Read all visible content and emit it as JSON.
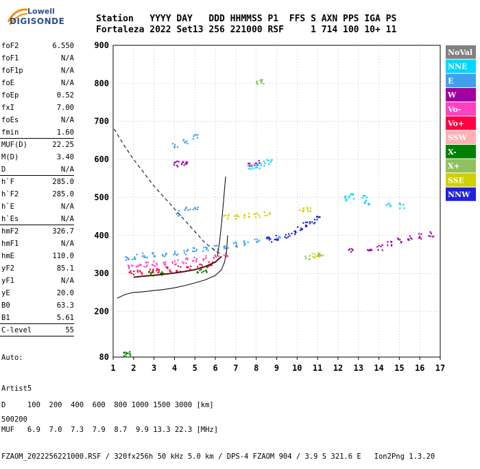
{
  "logo": {
    "line1": "Lowell",
    "line2": "DIGISONDE"
  },
  "header": {
    "row1": "Station   YYYY DAY   DDD HHMMSS P1  FFS S AXN PPS IGA PS",
    "row2": "Fortaleza 2022 Set13 256 221000 RSF     1 714 100 10+ 11"
  },
  "params": [
    {
      "name": "foF2",
      "value": "6.550"
    },
    {
      "name": "foF1",
      "value": "N/A"
    },
    {
      "name": "foF1p",
      "value": "N/A"
    },
    {
      "name": "foE",
      "value": "N/A"
    },
    {
      "name": "foEp",
      "value": "0.52"
    },
    {
      "name": "fxI",
      "value": "7.00"
    },
    {
      "name": "foEs",
      "value": "N/A"
    },
    {
      "name": "fmin",
      "value": "1.60"
    },
    {
      "name": "MUF(D)",
      "value": "22.25"
    },
    {
      "name": "M(D)",
      "value": "3.40"
    },
    {
      "name": "D",
      "value": "N/A"
    },
    {
      "name": "h`F",
      "value": "285.0"
    },
    {
      "name": "h`F2",
      "value": "285.0"
    },
    {
      "name": "h`E",
      "value": "N/A"
    },
    {
      "name": "h`Es",
      "value": "N/A"
    },
    {
      "name": "hmF2",
      "value": "326.7"
    },
    {
      "name": "hmF1",
      "value": "N/A"
    },
    {
      "name": "hmE",
      "value": "110.0"
    },
    {
      "name": "yF2",
      "value": "85.1"
    },
    {
      "name": "yF1",
      "value": "N/A"
    },
    {
      "name": "yE",
      "value": "20.0"
    },
    {
      "name": "B0",
      "value": "63.3"
    },
    {
      "name": "B1",
      "value": "5.61"
    },
    {
      "name": "C-level",
      "value": "55"
    }
  ],
  "auto": {
    "line1": "Auto:",
    "line2": "Artist5",
    "line3": "500200"
  },
  "footer": {
    "line1": "D     100  200  400  600  800 1000 1500 3000 [km]",
    "line2": "MUF   6.9  7.0  7.3  7.9  8.7  9.9 13.3 22.3 [MHz]",
    "line3": "FZAOM_2022256221000.RSF / 320fx256h 50 kHz 5.0 km / DPS-4 FZAOM 904 / 3.9 S 321.6 E   Ion2Png 1.3.20"
  },
  "legend": [
    {
      "label": "NoVal",
      "color": "#808080"
    },
    {
      "label": "NNE",
      "color": "#00d8ff"
    },
    {
      "label": "E",
      "color": "#3fa0f0"
    },
    {
      "label": "W",
      "color": "#a000a0"
    },
    {
      "label": "Vo-",
      "color": "#ff40c0"
    },
    {
      "label": "Vo+",
      "color": "#ff0040"
    },
    {
      "label": "SSW",
      "color": "#ffb0b0"
    },
    {
      "label": "X-",
      "color": "#008000"
    },
    {
      "label": "X+",
      "color": "#90c060"
    },
    {
      "label": "SSE",
      "color": "#d0d000"
    },
    {
      "label": "NNW",
      "color": "#2020e0"
    }
  ],
  "chart_data": {
    "type": "scatter",
    "xlim": [
      1,
      17
    ],
    "ylim": [
      80,
      900
    ],
    "x_ticks": [
      "1",
      "2",
      "3",
      "4",
      "5",
      "6",
      "7",
      "8",
      "9",
      "10",
      "11",
      "12",
      "13",
      "14",
      "15",
      "16",
      "17"
    ],
    "y_ticks": [
      "900",
      "800",
      "700",
      "600",
      "500",
      "400",
      "300",
      "200",
      "80"
    ],
    "y_tick_values": [
      900,
      800,
      700,
      600,
      500,
      400,
      300,
      200,
      80
    ],
    "grid": "dotted",
    "legend_placement": "right",
    "series": [
      {
        "color": "#3fa0f0",
        "points": [
          [
            1.7,
            340
          ],
          [
            2.0,
            345
          ],
          [
            2.5,
            348
          ],
          [
            3.0,
            350
          ],
          [
            3.5,
            352
          ],
          [
            4.0,
            355
          ],
          [
            4.5,
            358
          ],
          [
            5.0,
            362
          ],
          [
            5.5,
            366
          ],
          [
            6.0,
            370
          ],
          [
            6.5,
            374
          ],
          [
            7.0,
            378
          ],
          [
            7.5,
            382
          ],
          [
            8.0,
            386
          ],
          [
            8.5,
            390
          ],
          [
            9.0,
            395
          ],
          [
            4.2,
            460
          ],
          [
            4.6,
            470
          ],
          [
            5.0,
            475
          ],
          [
            4.0,
            640
          ],
          [
            4.5,
            650
          ],
          [
            5.0,
            660
          ]
        ]
      },
      {
        "color": "#ff40c0",
        "points": [
          [
            1.8,
            320
          ],
          [
            2.2,
            322
          ],
          [
            2.6,
            325
          ],
          [
            3.0,
            327
          ],
          [
            3.5,
            330
          ],
          [
            4.0,
            332
          ],
          [
            4.5,
            335
          ],
          [
            5.0,
            338
          ],
          [
            5.5,
            342
          ],
          [
            6.0,
            345
          ],
          [
            6.5,
            350
          ]
        ]
      },
      {
        "color": "#ff0040",
        "points": [
          [
            1.9,
            305
          ],
          [
            2.3,
            306
          ],
          [
            2.8,
            308
          ],
          [
            3.2,
            310
          ],
          [
            3.7,
            312
          ],
          [
            4.2,
            314
          ],
          [
            4.7,
            318
          ],
          [
            5.2,
            322
          ],
          [
            5.7,
            326
          ]
        ]
      },
      {
        "color": "#a000a0",
        "points": [
          [
            4.0,
            590
          ],
          [
            4.3,
            592
          ],
          [
            4.6,
            595
          ],
          [
            7.7,
            590
          ],
          [
            8.0,
            592
          ],
          [
            13.5,
            360
          ],
          [
            14.0,
            370
          ],
          [
            14.5,
            380
          ],
          [
            15.0,
            390
          ],
          [
            15.5,
            395
          ],
          [
            16.0,
            400
          ],
          [
            16.5,
            405
          ],
          [
            12.6,
            360
          ]
        ]
      },
      {
        "color": "#2020e0",
        "points": [
          [
            9.5,
            400
          ],
          [
            9.8,
            410
          ],
          [
            10.1,
            420
          ],
          [
            10.4,
            430
          ],
          [
            10.7,
            440
          ],
          [
            11.0,
            450
          ],
          [
            9.0,
            395
          ],
          [
            8.6,
            390
          ]
        ]
      },
      {
        "color": "#00d8ff",
        "points": [
          [
            7.7,
            580
          ],
          [
            8.0,
            585
          ],
          [
            8.3,
            590
          ],
          [
            8.6,
            595
          ],
          [
            12.4,
            500
          ],
          [
            12.6,
            505
          ],
          [
            13.3,
            500
          ],
          [
            13.4,
            490
          ],
          [
            14.4,
            480
          ],
          [
            15.1,
            480
          ]
        ]
      },
      {
        "color": "#d0d000",
        "points": [
          [
            6.5,
            450
          ],
          [
            7.0,
            452
          ],
          [
            7.5,
            455
          ],
          [
            8.0,
            455
          ],
          [
            8.5,
            458
          ],
          [
            10.2,
            470
          ],
          [
            10.5,
            470
          ],
          [
            10.8,
            350
          ],
          [
            11.1,
            352
          ]
        ]
      },
      {
        "color": "#008000",
        "points": [
          [
            2.8,
            300
          ],
          [
            3.3,
            302
          ],
          [
            5.2,
            310
          ],
          [
            5.5,
            312
          ],
          [
            1.5,
            90
          ],
          [
            1.7,
            90
          ]
        ]
      },
      {
        "color": "#90c060",
        "points": [
          [
            10.5,
            345
          ],
          [
            11.0,
            348
          ],
          [
            8.1,
            805
          ],
          [
            8.3,
            806
          ]
        ]
      }
    ],
    "curves": {
      "dashed": [
        [
          1.05,
          680
        ],
        [
          1.5,
          640
        ],
        [
          2.0,
          600
        ],
        [
          2.5,
          565
        ],
        [
          3.0,
          530
        ],
        [
          3.5,
          500
        ],
        [
          4.0,
          470
        ],
        [
          4.5,
          440
        ],
        [
          5.0,
          410
        ],
        [
          5.5,
          380
        ],
        [
          6.0,
          360
        ],
        [
          6.3,
          350
        ]
      ],
      "solid_lower": [
        [
          1.2,
          235
        ],
        [
          1.6,
          245
        ],
        [
          2.0,
          250
        ],
        [
          2.5,
          252
        ],
        [
          3.0,
          255
        ],
        [
          3.5,
          258
        ],
        [
          4.0,
          262
        ],
        [
          4.5,
          268
        ],
        [
          5.0,
          275
        ],
        [
          5.5,
          283
        ],
        [
          6.0,
          295
        ],
        [
          6.3,
          310
        ],
        [
          6.45,
          330
        ],
        [
          6.55,
          360
        ],
        [
          6.6,
          400
        ]
      ],
      "solid_vertical": [
        [
          6.1,
          345
        ],
        [
          6.2,
          380
        ],
        [
          6.3,
          430
        ],
        [
          6.4,
          490
        ],
        [
          6.5,
          555
        ]
      ],
      "dark_trace": [
        [
          2.0,
          290
        ],
        [
          2.5,
          293
        ],
        [
          3.0,
          295
        ],
        [
          3.5,
          298
        ],
        [
          4.0,
          301
        ],
        [
          4.5,
          305
        ],
        [
          5.0,
          310
        ],
        [
          5.5,
          318
        ],
        [
          6.0,
          330
        ],
        [
          6.3,
          345
        ]
      ]
    }
  }
}
